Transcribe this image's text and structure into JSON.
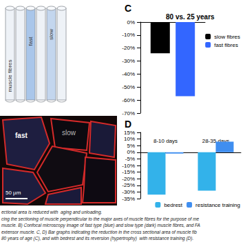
{
  "schematic": {
    "labels": [
      "fast",
      "slow",
      "muscle fibres"
    ]
  },
  "micrograph": {
    "labels": [
      "fast",
      "slow"
    ],
    "scale_bar": "50 µm"
  },
  "chart_data": [
    {
      "panel_label": "C",
      "type": "bar",
      "title": "80 vs. 25 years",
      "categories": [
        null
      ],
      "series": [
        {
          "name": "slow fibres",
          "color": "#000000",
          "values": [
            -24
          ]
        },
        {
          "name": "fast fibres",
          "color": "#3366ff",
          "values": [
            -57
          ]
        }
      ],
      "ylim": [
        -70,
        0
      ],
      "yticks": [
        {
          "value": -70,
          "label": "-70%"
        },
        {
          "value": -60,
          "label": "-60%"
        },
        {
          "value": -50,
          "label": "-50%"
        },
        {
          "value": -40,
          "label": "-40%"
        },
        {
          "value": -30,
          "label": "-30%"
        },
        {
          "value": -20,
          "label": "-20%"
        },
        {
          "value": -10,
          "label": "-10%"
        },
        {
          "value": 0,
          "label": "0%"
        }
      ],
      "grid": false,
      "legend": "right"
    },
    {
      "panel_label": "D",
      "type": "bar",
      "categories": [
        "8-10 days",
        "28-35 days"
      ],
      "series": [
        {
          "name": "bedrest",
          "color": "#33b2ea",
          "values": [
            -32,
            -29
          ]
        },
        {
          "name": "resistance training",
          "color": "#3f8ef0",
          "values": [
            -1,
            8
          ]
        }
      ],
      "ylim": [
        -35,
        15
      ],
      "yticks": [
        {
          "value": -35,
          "label": "-35%"
        },
        {
          "value": -30,
          "label": "-30%"
        },
        {
          "value": -25,
          "label": "-25%"
        },
        {
          "value": -20,
          "label": "-20%"
        },
        {
          "value": -15,
          "label": "-15%"
        },
        {
          "value": -10,
          "label": "-10%"
        },
        {
          "value": -5,
          "label": "-5%"
        },
        {
          "value": 0,
          "label": "0%"
        },
        {
          "value": 5,
          "label": "5%"
        },
        {
          "value": 10,
          "label": "10%"
        },
        {
          "value": 15,
          "label": "15%"
        }
      ],
      "grid": false,
      "legend": "bottom right"
    }
  ],
  "caption": [
    "ectional area is reduced with  aging and unloading.",
    "cing the sectioning of muscle perpendicular to the major axes of muscle fibres for the purpose of me",
    "muscle. B) Confocal microscopy image of fast type (blue) and slow type (dark) muscle fibres, and FA",
    "extensor muscle. C, D) Bar graphs indicating the reduction in the cross sectional area of muscle fib",
    "80 years of age (C), and with bedrest and its reversion (hypertrophy)  with resistance training (D)."
  ]
}
